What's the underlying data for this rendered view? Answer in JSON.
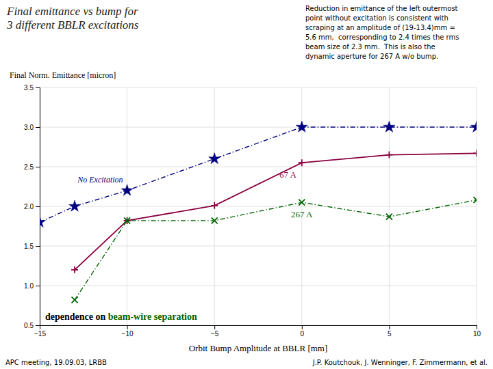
{
  "chart_data": {
    "type": "line",
    "title": "Final emittance vs bump for\n3 different BBLR excitations",
    "y_label": "Final Norm. Emittance [micron]",
    "x_label": "Orbit Bump Amplitude at BBLR [mm]",
    "annotation": "Reduction in emittance of the left outermost\npoint without excitation is consistent with\nscraping at an amplitude of (19-13.4)mm =\n5.6 mm,  corresponding to 2.4 times the rms\nbeam size of 2.3 mm.  This is also the\ndynamic aperture for 267 A w/o bump.",
    "annotation_bottom": [
      "dependence on ",
      "beam-wire separation"
    ],
    "footer_left": "APC meeting, 19.09.03, LRBB",
    "footer_right": "J.P. Koutchouk, J. Wenninger, F. Zimmermann, et al.",
    "x": [
      -15,
      -13,
      -10,
      -5,
      0,
      5,
      10
    ],
    "series": [
      {
        "name": "No Excitation",
        "color": "#000080",
        "marker": "star",
        "line_style": "dashdot",
        "values": [
          1.8,
          2.0,
          2.2,
          2.6,
          3.0,
          3.0,
          3.0
        ]
      },
      {
        "name": "67 A",
        "color": "#8B0040",
        "marker": "plus",
        "line_style": "solid",
        "values": [
          null,
          1.2,
          1.82,
          2.01,
          2.55,
          2.65,
          2.67
        ]
      },
      {
        "name": "267 A",
        "color": "#006400",
        "marker": "x",
        "line_style": "dashdot",
        "values": [
          null,
          0.82,
          1.82,
          1.82,
          2.05,
          1.87,
          2.08
        ]
      }
    ],
    "xlim": [
      -15,
      10
    ],
    "ylim": [
      0.5,
      3.5
    ],
    "xticks": [
      -15,
      -10,
      -5,
      0,
      5,
      10
    ],
    "yticks": [
      0.5,
      {
        "value": 1,
        "label": "1.0"
      },
      1.5,
      {
        "value": 2,
        "label": "2.0"
      },
      2.5,
      {
        "value": 3,
        "label": "3.0"
      },
      3.5
    ],
    "grid": true
  }
}
